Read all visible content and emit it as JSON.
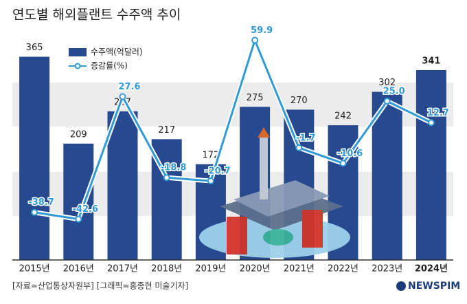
{
  "chart_data": {
    "type": "bar-line",
    "title": "연도별 해외플랜트 수주액 추이",
    "categories": [
      "2015년",
      "2016년",
      "2017년",
      "2018년",
      "2019년",
      "2020년",
      "2021년",
      "2022년",
      "2023년",
      "2024년"
    ],
    "series": [
      {
        "name": "수주액(억달러)",
        "type": "bar",
        "color": "#27498f",
        "values": [
          365,
          209,
          267,
          217,
          172,
          275,
          270,
          242,
          302,
          341
        ]
      },
      {
        "name": "증감률(%)",
        "type": "line",
        "axis": "y2",
        "color": "#2f9ad6",
        "values": [
          -38.7,
          -42.6,
          27.6,
          -18.8,
          -20.7,
          59.9,
          -1.7,
          -10.6,
          25.0,
          12.7
        ],
        "value_labels": [
          "-38.7",
          "-42.6",
          "27.6",
          "-18.8",
          "-20.7",
          "59.9",
          "-1.7",
          "-10.6",
          "25.0",
          "12.7"
        ]
      }
    ],
    "ylim": [
      0,
      420
    ],
    "y2lim": [
      -66,
      68
    ],
    "legend": "upper left",
    "source": "[자료=산업통상자원부] [그래픽=홍종현 미술기자]",
    "logo": "NEWSPIM"
  }
}
